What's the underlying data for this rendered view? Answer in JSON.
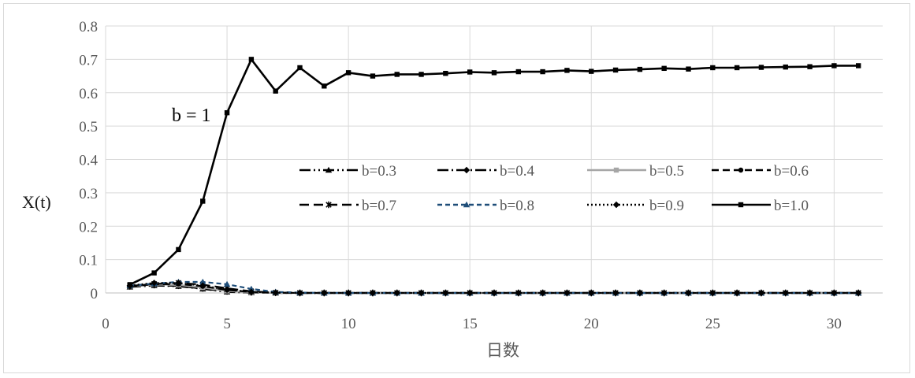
{
  "chart_data": {
    "type": "line",
    "xlabel": "日数",
    "ylabel": "X(t)",
    "annotation": "b = 1",
    "xlim": [
      0,
      32
    ],
    "ylim": [
      0,
      0.8
    ],
    "x_ticks": [
      "0",
      "5",
      "10",
      "15",
      "20",
      "25",
      "30"
    ],
    "y_ticks": [
      "0",
      "0.1",
      "0.2",
      "0.3",
      "0.4",
      "0.5",
      "0.6",
      "0.7",
      "0.8"
    ],
    "grid": true,
    "legend_placement": "inside-right",
    "x": [
      1,
      2,
      3,
      4,
      5,
      6,
      7,
      8,
      9,
      10,
      11,
      12,
      13,
      14,
      15,
      16,
      17,
      18,
      19,
      20,
      21,
      22,
      23,
      24,
      25,
      26,
      27,
      28,
      29,
      30,
      31
    ],
    "series": [
      {
        "name": "b=0.3",
        "color": "#000000",
        "dash": "14 4 2 4 2 4",
        "marker": "triangle",
        "values": [
          0.018,
          0.022,
          0.02,
          0.012,
          0.003,
          0.001,
          0,
          0,
          0,
          0,
          0,
          0,
          0,
          0,
          0,
          0,
          0,
          0,
          0,
          0,
          0,
          0,
          0,
          0,
          0,
          0,
          0,
          0,
          0,
          0,
          0
        ]
      },
      {
        "name": "b=0.4",
        "color": "#000000",
        "dash": "14 4 2 4",
        "marker": "diamond",
        "values": [
          0.019,
          0.023,
          0.021,
          0.013,
          0.004,
          0.001,
          0,
          0,
          0,
          0,
          0,
          0,
          0,
          0,
          0,
          0,
          0,
          0,
          0,
          0,
          0,
          0,
          0,
          0,
          0,
          0,
          0,
          0,
          0,
          0,
          0
        ]
      },
      {
        "name": "b=0.5",
        "color": "#a6a6a6",
        "dash": "",
        "marker": "square",
        "values": [
          0.02,
          0.025,
          0.024,
          0.016,
          0.006,
          0.002,
          0,
          0,
          0,
          0,
          0,
          0,
          0,
          0,
          0,
          0,
          0,
          0,
          0,
          0,
          0,
          0,
          0,
          0,
          0,
          0,
          0,
          0,
          0,
          0,
          0
        ]
      },
      {
        "name": "b=0.6",
        "color": "#000000",
        "dash": "9 5",
        "marker": "circle",
        "values": [
          0.02,
          0.026,
          0.027,
          0.02,
          0.009,
          0.003,
          0.001,
          0,
          0,
          0,
          0,
          0,
          0,
          0,
          0,
          0,
          0,
          0,
          0,
          0,
          0,
          0,
          0,
          0,
          0,
          0,
          0,
          0,
          0,
          0,
          0
        ]
      },
      {
        "name": "b=0.7",
        "color": "#000000",
        "dash": "12 6",
        "marker": "star",
        "values": [
          0.021,
          0.027,
          0.03,
          0.025,
          0.014,
          0.005,
          0.001,
          0,
          0,
          0,
          0,
          0,
          0,
          0,
          0,
          0,
          0,
          0,
          0,
          0,
          0,
          0,
          0,
          0,
          0,
          0,
          0,
          0,
          0,
          0,
          0
        ]
      },
      {
        "name": "b=0.8",
        "color": "#1f4e79",
        "dash": "6 4",
        "marker": "triangle",
        "values": [
          0.022,
          0.028,
          0.033,
          0.033,
          0.026,
          0.012,
          0.003,
          0.001,
          0,
          0,
          0,
          0,
          0,
          0,
          0,
          0,
          0,
          0,
          0,
          0,
          0,
          0,
          0,
          0,
          0,
          0,
          0,
          0,
          0,
          0,
          0
        ]
      },
      {
        "name": "b=0.9",
        "color": "#000000",
        "dash": "2 3",
        "marker": "diamond",
        "values": [
          0.022,
          0.03,
          0.03,
          0.022,
          0.01,
          0.003,
          0.001,
          0,
          0,
          0,
          0,
          0,
          0,
          0,
          0,
          0,
          0,
          0,
          0,
          0,
          0,
          0,
          0,
          0,
          0,
          0,
          0,
          0,
          0,
          0,
          0
        ]
      },
      {
        "name": "b=1.0",
        "color": "#000000",
        "dash": "",
        "marker": "square",
        "values": [
          0.025,
          0.06,
          0.13,
          0.275,
          0.54,
          0.7,
          0.605,
          0.675,
          0.62,
          0.66,
          0.65,
          0.655,
          0.655,
          0.658,
          0.662,
          0.66,
          0.663,
          0.663,
          0.667,
          0.664,
          0.668,
          0.67,
          0.673,
          0.671,
          0.675,
          0.675,
          0.676,
          0.677,
          0.678,
          0.681,
          0.681
        ]
      }
    ]
  }
}
